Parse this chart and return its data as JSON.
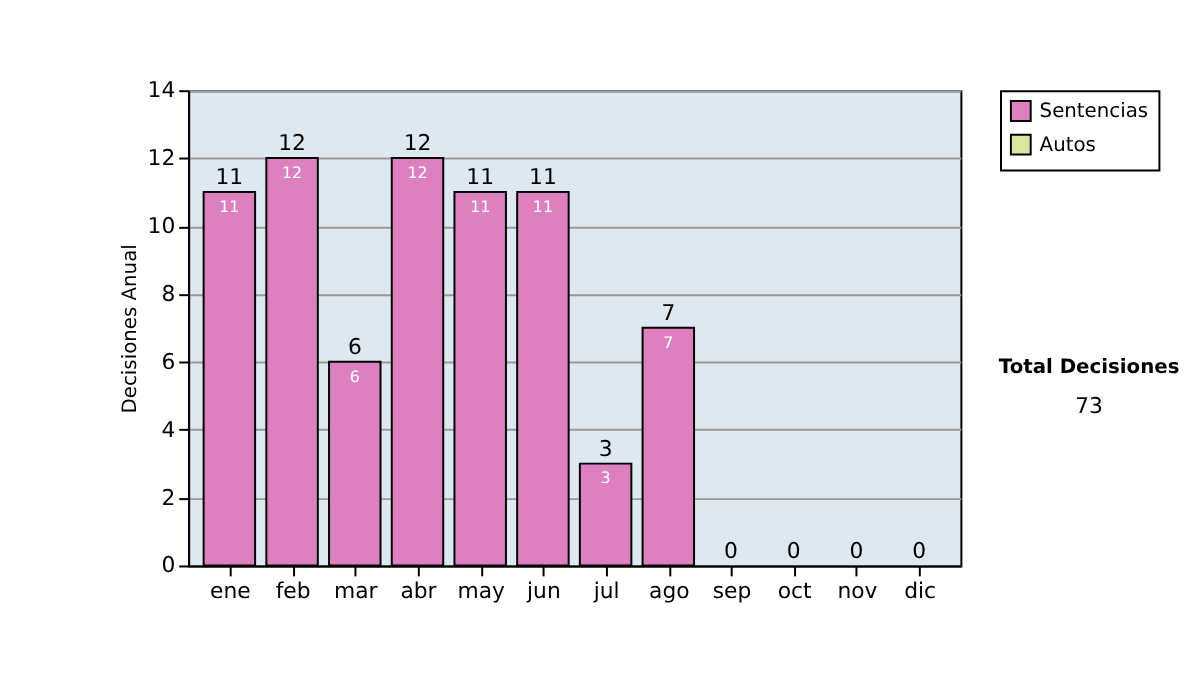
{
  "chart_data": {
    "type": "bar",
    "stacked": true,
    "ylabel": "Decisiones Anual",
    "categories": [
      "ene",
      "feb",
      "mar",
      "abr",
      "may",
      "jun",
      "jul",
      "ago",
      "sep",
      "oct",
      "nov",
      "dic"
    ],
    "series": [
      {
        "name": "Sentencias",
        "color": "#dd80c0",
        "values": [
          11,
          12,
          6,
          12,
          11,
          11,
          3,
          7,
          0,
          0,
          0,
          0
        ],
        "value_labels": [
          "11",
          "12",
          "6",
          "12",
          "11",
          "11",
          "3",
          "7",
          null,
          null,
          null,
          null
        ]
      },
      {
        "name": "Autos",
        "color": "#d8e8a0",
        "values": [
          0,
          0,
          0,
          0,
          0,
          0,
          0,
          0,
          0,
          0,
          0,
          0
        ]
      }
    ],
    "totals": [
      "11",
      "12",
      "6",
      "12",
      "11",
      "11",
      "3",
      "7",
      "0",
      "0",
      "0",
      "0"
    ],
    "ylim": [
      0,
      14
    ],
    "yticks": [
      0,
      2,
      4,
      6,
      8,
      10,
      12,
      14
    ],
    "grid": "y",
    "legend": "right",
    "annotations": [
      "Total Decisiones",
      "73"
    ]
  }
}
